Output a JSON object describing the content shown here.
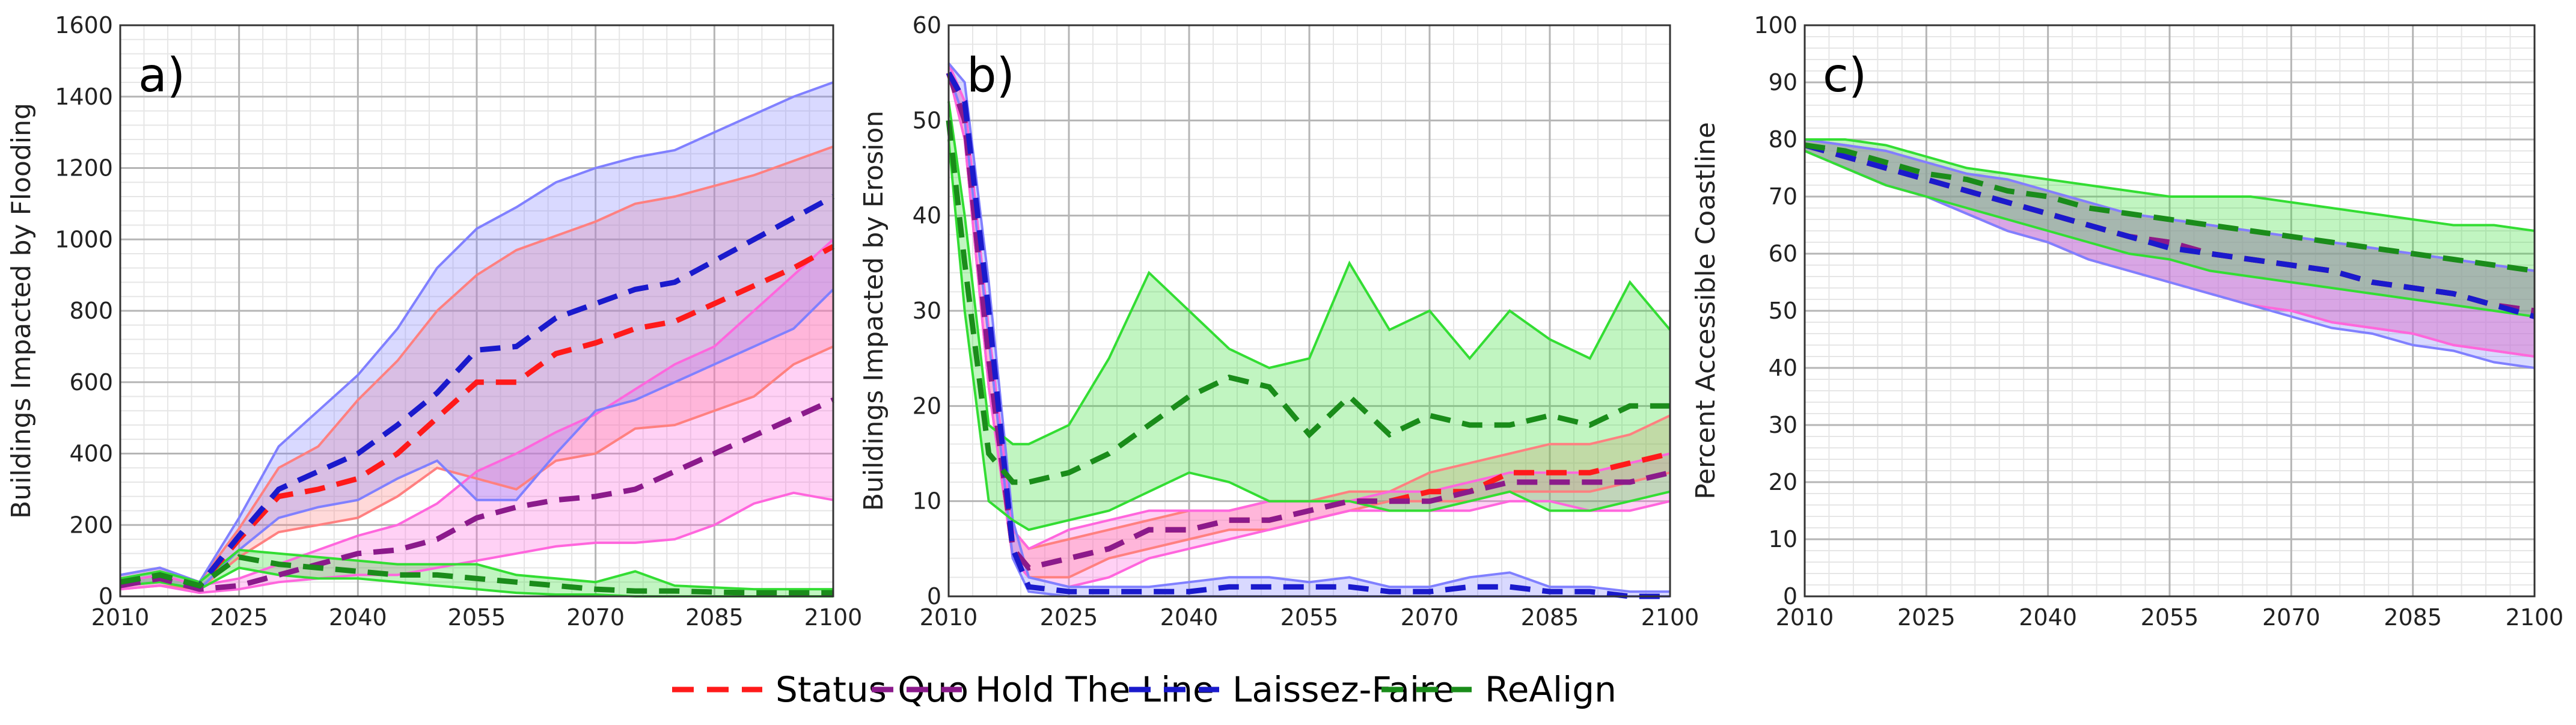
{
  "chart_data": [
    {
      "type": "line",
      "panel_label": "a)",
      "ylabel": "Buildings Impacted by Flooding",
      "xlabel": "",
      "xlim": [
        2010,
        2100
      ],
      "ylim": [
        0,
        1600
      ],
      "xticks": [
        2010,
        2025,
        2040,
        2055,
        2070,
        2085,
        2100
      ],
      "yticks": [
        0,
        200,
        400,
        600,
        800,
        1000,
        1200,
        1400,
        1600
      ],
      "grid": true,
      "x": [
        2010,
        2015,
        2020,
        2025,
        2030,
        2035,
        2040,
        2045,
        2050,
        2055,
        2060,
        2065,
        2070,
        2075,
        2080,
        2085,
        2090,
        2095,
        2100
      ],
      "series": [
        {
          "name": "Status Quo",
          "color": "#ff1a1a",
          "fill": "#ff8080",
          "mean": [
            40,
            60,
            30,
            160,
            280,
            300,
            330,
            400,
            500,
            600,
            600,
            680,
            710,
            750,
            770,
            820,
            870,
            920,
            980
          ],
          "lower": [
            20,
            30,
            20,
            110,
            180,
            200,
            220,
            280,
            360,
            330,
            300,
            380,
            400,
            470,
            480,
            520,
            560,
            650,
            700
          ],
          "upper": [
            60,
            80,
            40,
            190,
            360,
            420,
            550,
            660,
            800,
            900,
            970,
            1010,
            1050,
            1100,
            1120,
            1150,
            1180,
            1220,
            1260
          ]
        },
        {
          "name": "Hold The Line",
          "color": "#8b1a8b",
          "fill": "#ff66dd",
          "mean": [
            30,
            50,
            20,
            30,
            60,
            90,
            120,
            130,
            160,
            220,
            250,
            270,
            280,
            300,
            350,
            400,
            450,
            500,
            550
          ],
          "lower": [
            20,
            30,
            10,
            20,
            40,
            50,
            60,
            60,
            80,
            100,
            120,
            140,
            150,
            150,
            160,
            200,
            260,
            290,
            270
          ],
          "upper": [
            40,
            60,
            30,
            50,
            90,
            130,
            170,
            200,
            260,
            350,
            400,
            460,
            510,
            580,
            650,
            700,
            800,
            900,
            1000
          ]
        },
        {
          "name": "Laissez-Faire",
          "color": "#1a1acc",
          "fill": "#8080ff",
          "mean": [
            40,
            60,
            30,
            170,
            300,
            350,
            400,
            480,
            570,
            690,
            700,
            780,
            820,
            860,
            880,
            940,
            1000,
            1060,
            1120
          ],
          "lower": [
            30,
            40,
            20,
            130,
            220,
            250,
            270,
            330,
            380,
            270,
            270,
            400,
            520,
            550,
            600,
            650,
            700,
            750,
            860
          ],
          "upper": [
            60,
            80,
            40,
            220,
            420,
            520,
            620,
            750,
            920,
            1030,
            1090,
            1160,
            1200,
            1230,
            1250,
            1300,
            1350,
            1400,
            1440
          ]
        },
        {
          "name": "ReAlign",
          "color": "#1a8c1a",
          "fill": "#33dd33",
          "mean": [
            40,
            60,
            30,
            110,
            90,
            80,
            70,
            60,
            60,
            50,
            40,
            30,
            20,
            15,
            15,
            12,
            10,
            10,
            10
          ],
          "lower": [
            30,
            40,
            20,
            80,
            60,
            50,
            50,
            40,
            30,
            20,
            10,
            5,
            5,
            0,
            0,
            0,
            0,
            0,
            0
          ],
          "upper": [
            50,
            70,
            40,
            130,
            120,
            110,
            100,
            90,
            90,
            90,
            60,
            50,
            40,
            70,
            30,
            25,
            20,
            20,
            20
          ]
        }
      ]
    },
    {
      "type": "line",
      "panel_label": "b)",
      "ylabel": "Buildings Impacted by Erosion",
      "xlabel": "",
      "xlim": [
        2010,
        2100
      ],
      "ylim": [
        0,
        60
      ],
      "xticks": [
        2010,
        2025,
        2040,
        2055,
        2070,
        2085,
        2100
      ],
      "yticks": [
        0,
        10,
        20,
        30,
        40,
        50,
        60
      ],
      "grid": true,
      "x": [
        2010,
        2012,
        2015,
        2018,
        2020,
        2025,
        2030,
        2035,
        2040,
        2045,
        2050,
        2055,
        2060,
        2065,
        2070,
        2075,
        2080,
        2085,
        2090,
        2095,
        2100
      ],
      "series": [
        {
          "name": "Status Quo",
          "color": "#ff1a1a",
          "fill": "#ff8080",
          "mean": [
            55,
            50,
            25,
            5,
            3,
            4,
            5,
            7,
            7,
            8,
            8,
            9,
            10,
            10,
            11,
            11,
            13,
            13,
            13,
            14,
            15
          ],
          "lower": [
            55,
            48,
            22,
            4,
            2,
            2,
            4,
            5,
            6,
            7,
            7,
            8,
            9,
            10,
            10,
            10,
            11,
            11,
            11,
            12,
            13
          ],
          "upper": [
            56,
            52,
            28,
            7,
            5,
            6,
            7,
            8,
            9,
            9,
            10,
            10,
            11,
            11,
            13,
            14,
            15,
            16,
            16,
            17,
            19
          ]
        },
        {
          "name": "Hold The Line",
          "color": "#8b1a8b",
          "fill": "#ff66dd",
          "mean": [
            55,
            50,
            25,
            5,
            3,
            4,
            5,
            7,
            7,
            8,
            8,
            9,
            10,
            10,
            10,
            11,
            12,
            12,
            12,
            12,
            13
          ],
          "lower": [
            55,
            48,
            22,
            4,
            2,
            1,
            2,
            4,
            5,
            6,
            7,
            8,
            9,
            9,
            9,
            9,
            10,
            10,
            9,
            9,
            10
          ],
          "upper": [
            56,
            52,
            28,
            7,
            5,
            7,
            8,
            9,
            9,
            9,
            10,
            10,
            10,
            11,
            11,
            12,
            13,
            13,
            13,
            14,
            15
          ]
        },
        {
          "name": "Laissez-Faire",
          "color": "#1a1acc",
          "fill": "#8080ff",
          "mean": [
            55,
            52,
            30,
            5,
            1,
            0.5,
            0.5,
            0.5,
            0.5,
            1,
            1,
            1,
            1,
            0.5,
            0.5,
            1,
            1,
            0.5,
            0.5,
            0,
            0
          ],
          "lower": [
            55,
            50,
            27,
            4,
            0.5,
            0,
            0,
            0,
            0,
            0,
            0,
            0,
            0,
            0,
            0,
            0,
            0,
            0,
            0,
            0,
            0
          ],
          "upper": [
            56,
            54,
            33,
            8,
            2,
            1,
            1,
            1,
            1.5,
            2,
            2,
            1.5,
            2,
            1,
            1,
            2,
            2.5,
            1,
            1,
            0.5,
            0.5
          ]
        },
        {
          "name": "ReAlign",
          "color": "#1a8c1a",
          "fill": "#33dd33",
          "mean": [
            50,
            35,
            15,
            12,
            12,
            13,
            15,
            18,
            21,
            23,
            22,
            17,
            21,
            17,
            19,
            18,
            18,
            19,
            18,
            20,
            20
          ],
          "lower": [
            48,
            30,
            10,
            8,
            7,
            8,
            9,
            11,
            13,
            12,
            10,
            10,
            10,
            9,
            9,
            10,
            11,
            9,
            9,
            10,
            11
          ],
          "upper": [
            52,
            40,
            18,
            16,
            16,
            18,
            25,
            34,
            30,
            26,
            24,
            25,
            35,
            28,
            30,
            25,
            30,
            27,
            25,
            33,
            28
          ]
        }
      ]
    },
    {
      "type": "line",
      "panel_label": "c)",
      "ylabel": "Percent Accessible Coastline",
      "xlabel": "",
      "xlim": [
        2010,
        2100
      ],
      "ylim": [
        0,
        100
      ],
      "xticks": [
        2010,
        2025,
        2040,
        2055,
        2070,
        2085,
        2100
      ],
      "yticks": [
        0,
        10,
        20,
        30,
        40,
        50,
        60,
        70,
        80,
        90,
        100
      ],
      "grid": true,
      "x": [
        2010,
        2015,
        2020,
        2025,
        2030,
        2035,
        2040,
        2045,
        2050,
        2055,
        2060,
        2065,
        2070,
        2075,
        2080,
        2085,
        2090,
        2095,
        2100
      ],
      "series": [
        {
          "name": "Status Quo",
          "color": "#ff1a1a",
          "fill": "#ff8080",
          "mean": [
            79,
            77,
            75,
            73,
            71,
            69,
            67,
            65,
            63,
            62,
            60,
            59,
            58,
            57,
            55,
            54,
            53,
            51,
            50
          ],
          "lower": [
            78,
            75,
            72,
            70,
            67,
            64,
            62,
            59,
            57,
            55,
            53,
            51,
            50,
            48,
            47,
            46,
            44,
            43,
            42
          ],
          "upper": [
            80,
            79,
            78,
            76,
            74,
            73,
            71,
            69,
            67,
            66,
            65,
            64,
            63,
            62,
            61,
            60,
            59,
            58,
            57
          ]
        },
        {
          "name": "Hold The Line",
          "color": "#8b1a8b",
          "fill": "#ff66dd",
          "mean": [
            79,
            77,
            75,
            73,
            71,
            69,
            67,
            65,
            63,
            62,
            60,
            59,
            58,
            57,
            55,
            54,
            53,
            51,
            50
          ],
          "lower": [
            78,
            75,
            72,
            70,
            67,
            64,
            62,
            59,
            57,
            55,
            53,
            51,
            50,
            48,
            47,
            46,
            44,
            43,
            42
          ],
          "upper": [
            80,
            79,
            78,
            76,
            74,
            73,
            71,
            69,
            67,
            66,
            65,
            64,
            63,
            62,
            61,
            60,
            59,
            58,
            57
          ]
        },
        {
          "name": "Laissez-Faire",
          "color": "#1a1acc",
          "fill": "#8080ff",
          "mean": [
            79,
            77,
            75,
            73,
            71,
            69,
            67,
            65,
            63,
            61,
            60,
            59,
            58,
            57,
            55,
            54,
            53,
            51,
            49
          ],
          "lower": [
            78,
            75,
            72,
            70,
            67,
            64,
            62,
            59,
            57,
            55,
            53,
            51,
            49,
            47,
            46,
            44,
            43,
            41,
            40
          ],
          "upper": [
            80,
            79,
            78,
            76,
            74,
            73,
            71,
            69,
            67,
            66,
            65,
            64,
            63,
            62,
            61,
            60,
            59,
            58,
            57
          ]
        },
        {
          "name": "ReAlign",
          "color": "#1a8c1a",
          "fill": "#33dd33",
          "mean": [
            79,
            78,
            76,
            74,
            73,
            71,
            70,
            68,
            67,
            66,
            65,
            64,
            63,
            62,
            61,
            60,
            59,
            58,
            57
          ],
          "lower": [
            78,
            75,
            72,
            70,
            68,
            66,
            64,
            62,
            60,
            59,
            57,
            56,
            55,
            54,
            53,
            52,
            51,
            50,
            49
          ],
          "upper": [
            80,
            80,
            79,
            77,
            75,
            74,
            73,
            72,
            71,
            70,
            70,
            70,
            69,
            68,
            67,
            66,
            65,
            65,
            64
          ]
        }
      ]
    }
  ],
  "legend": {
    "placement": "bottom-center",
    "entries": [
      {
        "label": "Status Quo",
        "color": "#ff1a1a"
      },
      {
        "label": "Hold The Line",
        "color": "#8b1a8b"
      },
      {
        "label": "Laissez-Faire",
        "color": "#1a1acc"
      },
      {
        "label": "ReAlign",
        "color": "#1a8c1a"
      }
    ]
  }
}
